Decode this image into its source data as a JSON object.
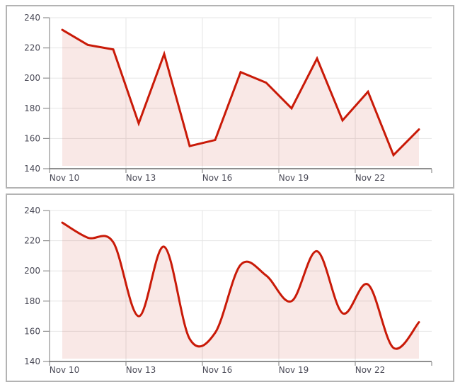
{
  "colors": {
    "line": "#c91a08",
    "area_fill": "rgba(201,26,8,0.10)",
    "grid": "#e5e5e5",
    "axis": "#8f8f8f",
    "label": "#4a4a57",
    "panel_border": "#b3b3b3",
    "background": "#ffffff"
  },
  "chart_data": [
    {
      "type": "area",
      "name": "linear-area-chart",
      "line_shape": "linear",
      "categories": [
        "Nov 10",
        "Nov 11",
        "Nov 12",
        "Nov 13",
        "Nov 14",
        "Nov 15",
        "Nov 16",
        "Nov 17",
        "Nov 18",
        "Nov 19",
        "Nov 20",
        "Nov 21",
        "Nov 22",
        "Nov 23",
        "Nov 24"
      ],
      "values": [
        232,
        222,
        219,
        170,
        216,
        155,
        159,
        204,
        197,
        180,
        213,
        172,
        191,
        149,
        166
      ],
      "x_tick_labels": [
        "Nov 10",
        "Nov 13",
        "Nov 16",
        "Nov 19",
        "Nov 22"
      ],
      "x_tick_indices": [
        0,
        3,
        6,
        9,
        12
      ],
      "y_ticks": [
        240,
        220,
        200,
        180,
        160,
        140
      ],
      "ylim": [
        140,
        240
      ],
      "grid": true,
      "legend": false,
      "title": ""
    },
    {
      "type": "area",
      "name": "smoothed-area-chart",
      "line_shape": "smoothed",
      "categories": [
        "Nov 10",
        "Nov 11",
        "Nov 12",
        "Nov 13",
        "Nov 14",
        "Nov 15",
        "Nov 16",
        "Nov 17",
        "Nov 18",
        "Nov 19",
        "Nov 20",
        "Nov 21",
        "Nov 22",
        "Nov 23",
        "Nov 24"
      ],
      "values": [
        232,
        222,
        219,
        170,
        216,
        155,
        159,
        204,
        197,
        180,
        213,
        172,
        191,
        149,
        166
      ],
      "x_tick_labels": [
        "Nov 10",
        "Nov 13",
        "Nov 16",
        "Nov 19",
        "Nov 22"
      ],
      "x_tick_indices": [
        0,
        3,
        6,
        9,
        12
      ],
      "y_ticks": [
        240,
        220,
        200,
        180,
        160,
        140
      ],
      "ylim": [
        140,
        240
      ],
      "grid": true,
      "legend": false,
      "title": ""
    }
  ]
}
